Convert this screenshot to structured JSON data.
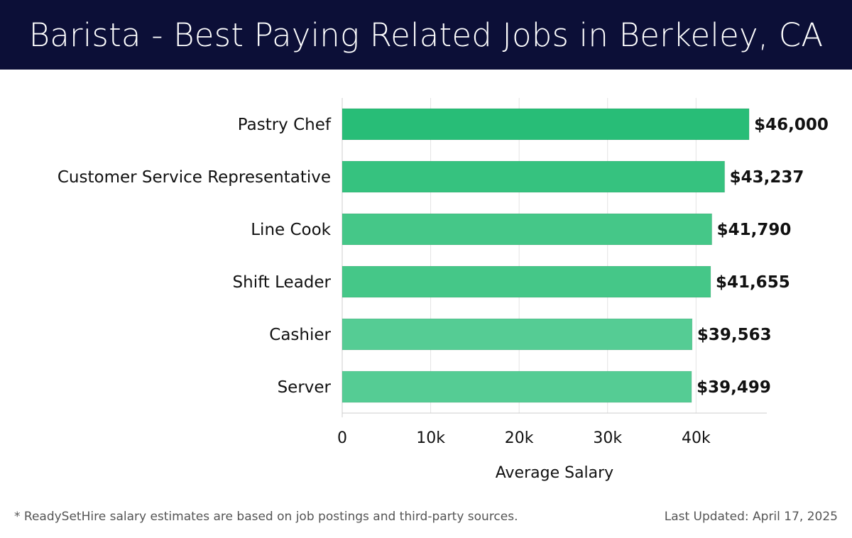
{
  "header": {
    "title": "Barista - Best Paying Related Jobs in Berkeley, CA"
  },
  "chart_data": {
    "type": "bar",
    "orientation": "horizontal",
    "title": "Barista - Best Paying Related Jobs in Berkeley, CA",
    "categories": [
      "Pastry Chef",
      "Customer Service Representative",
      "Line Cook",
      "Shift Leader",
      "Cashier",
      "Server"
    ],
    "values": [
      46000,
      43237,
      41790,
      41655,
      39563,
      39499
    ],
    "value_labels": [
      "$46,000",
      "$43,237",
      "$41,790",
      "$41,655",
      "$39,563",
      "$39,499"
    ],
    "bar_colors": [
      "#28bd77",
      "#36c27f",
      "#45c788",
      "#45c788",
      "#55cc94",
      "#55cc94"
    ],
    "xlabel": "Average Salary",
    "ylabel": "",
    "xlim": [
      0,
      48000
    ],
    "xticks": [
      0,
      10000,
      20000,
      30000,
      40000
    ],
    "xtick_labels": [
      "0",
      "10k",
      "20k",
      "30k",
      "40k"
    ],
    "grid": "vertical"
  },
  "footer": {
    "note": "* ReadySetHire salary estimates are based on job postings and third-party sources.",
    "updated": "Last Updated: April 17, 2025"
  }
}
